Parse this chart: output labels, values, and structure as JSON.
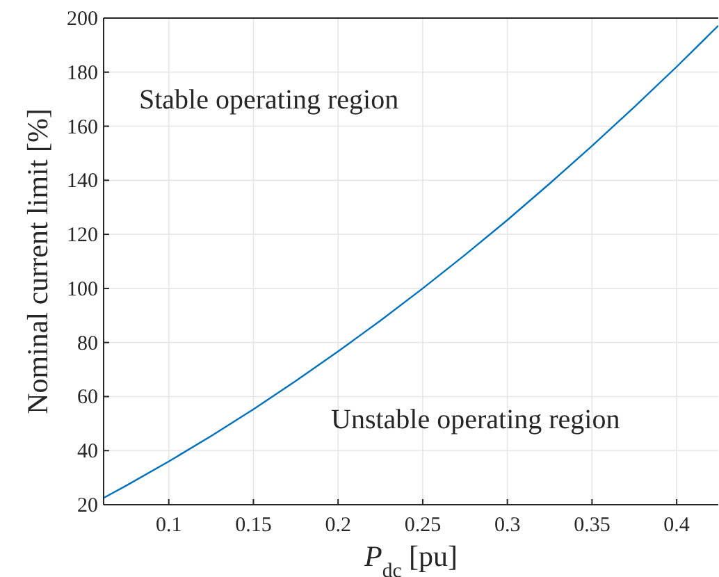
{
  "chart_data": {
    "type": "line",
    "xlabel": "P$_{dc}$ [pu]",
    "ylabel": "Nominal current limit [%]",
    "x": [
      0.0615,
      0.075,
      0.1,
      0.125,
      0.15,
      0.175,
      0.2,
      0.225,
      0.25,
      0.275,
      0.3,
      0.325,
      0.35,
      0.375,
      0.4,
      0.4246
    ],
    "series": [
      {
        "color": "#0072bd",
        "values": [
          22.5,
          27.1,
          36,
          45.4,
          55.3,
          65.8,
          76.7,
          88.1,
          100,
          112.4,
          125.3,
          138.8,
          152.7,
          167.1,
          182,
          197.2
        ]
      }
    ],
    "xlim": [
      0.0615,
      0.4246
    ],
    "xticks": [
      0.1,
      0.15,
      0.2,
      0.25,
      0.3,
      0.35,
      0.4
    ],
    "ylim": [
      20,
      200
    ],
    "yticks": [
      20,
      40,
      60,
      80,
      100,
      120,
      140,
      160,
      180,
      200
    ],
    "grid": true,
    "marker": "none",
    "line_style": "solid",
    "annotations": [
      "Stable operating region",
      "Unstable operating region"
    ]
  }
}
